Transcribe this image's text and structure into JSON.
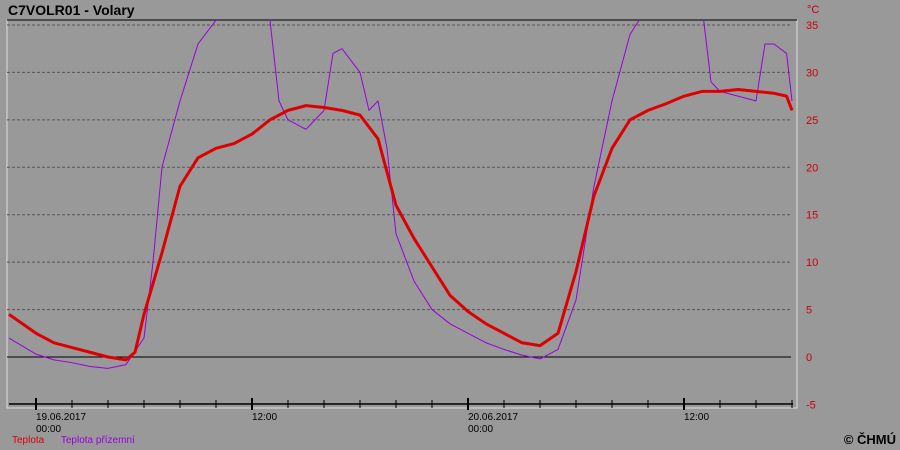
{
  "title": "C7VOLR01 - Volary",
  "copyright": "© ČHMÚ",
  "chart_data": {
    "type": "line",
    "title": "C7VOLR01 - Volary",
    "ylabel": "°C",
    "ylim": [
      -5,
      35
    ],
    "yticks": [
      -5,
      0,
      5,
      10,
      15,
      20,
      25,
      30,
      35
    ],
    "grid": true,
    "legend_placement": "bottom-left",
    "x_unit": "hours since 19.06.2017 00:00",
    "xlim": [
      -1.6,
      42.2
    ],
    "xticks": [
      {
        "h": 0,
        "l1": "19.06.2017",
        "l2": "00:00"
      },
      {
        "h": 12,
        "l1": "12:00",
        "l2": ""
      },
      {
        "h": 24,
        "l1": "20.06.2017",
        "l2": "00:00"
      },
      {
        "h": 36,
        "l1": "12:00",
        "l2": ""
      }
    ],
    "series": [
      {
        "name": "Teplota",
        "color": "#dd0000",
        "x": [
          -1.5,
          0,
          1,
          2,
          3,
          4,
          5,
          5.5,
          6,
          7,
          8,
          9,
          10,
          11,
          12,
          13,
          14,
          15,
          16,
          17,
          18,
          19,
          20,
          21,
          22,
          23,
          24,
          25,
          26,
          27,
          28,
          29,
          30,
          31,
          32,
          33,
          34,
          35,
          36,
          37,
          38,
          39,
          40,
          41,
          41.7,
          42
        ],
        "y": [
          4.5,
          2.5,
          1.5,
          1,
          0.5,
          0,
          -0.3,
          0.5,
          4.5,
          11,
          18,
          21,
          22,
          22.5,
          23.5,
          25,
          26,
          26.5,
          26.3,
          26,
          25.5,
          23,
          16,
          12.5,
          9.5,
          6.5,
          4.8,
          3.5,
          2.5,
          1.5,
          1.2,
          2.5,
          9,
          17,
          22,
          25,
          26,
          26.7,
          27.5,
          28,
          28,
          28.2,
          28,
          27.8,
          27.5,
          26
        ]
      },
      {
        "name": "Teplota přízemní",
        "color": "#9900dd",
        "x": [
          -1.5,
          0,
          1,
          2,
          3,
          4,
          5,
          6,
          6.5,
          7,
          8,
          9,
          10,
          11,
          12,
          13,
          13.5,
          14,
          15,
          16,
          16.5,
          17,
          18,
          18.5,
          19,
          19.5,
          20,
          21,
          22,
          23,
          24,
          25,
          26,
          27,
          28,
          29,
          30,
          31,
          32,
          33,
          34,
          37,
          37.5,
          38,
          39,
          40,
          40.5,
          41,
          41.7,
          42
        ],
        "y": [
          2,
          0.3,
          -0.3,
          -0.6,
          -1,
          -1.2,
          -0.8,
          2,
          10,
          20,
          27,
          33,
          35.5,
          36,
          36,
          35.5,
          27,
          25,
          24,
          26,
          32,
          32.5,
          30,
          26,
          27,
          22,
          13,
          8,
          5,
          3.5,
          2.5,
          1.5,
          0.8,
          0.2,
          -0.2,
          0.8,
          6,
          18,
          27,
          34,
          37,
          37,
          29,
          28,
          27.5,
          27,
          33,
          33,
          32,
          27
        ]
      }
    ]
  }
}
